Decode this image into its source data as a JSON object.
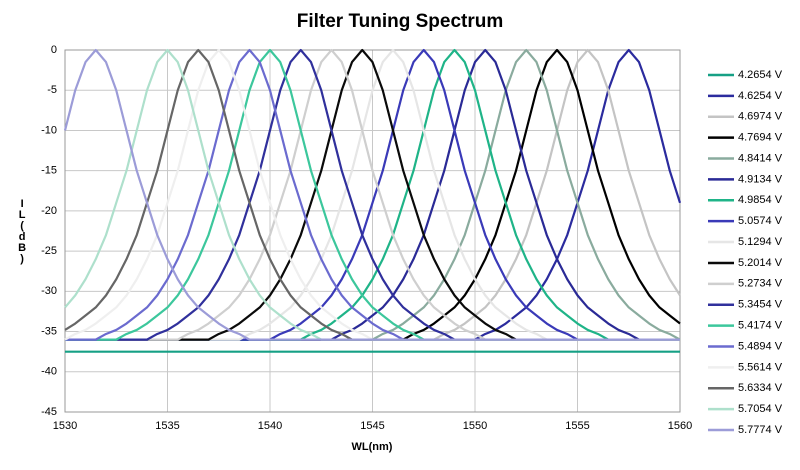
{
  "chart_data": {
    "type": "line",
    "title": "Filter Tuning Spectrum",
    "x_label": "WL(nm)",
    "y_label": "IL(dB)",
    "xlim": [
      1530,
      1560
    ],
    "ylim": [
      -45,
      0
    ],
    "xticks": [
      1530,
      1535,
      1540,
      1545,
      1550,
      1555,
      1560
    ],
    "yticks": [
      0,
      -5,
      -10,
      -15,
      -20,
      -25,
      -30,
      -35,
      -40,
      -45
    ],
    "grid": true,
    "legend": "right",
    "x": [
      1530,
      1530.5,
      1531,
      1531.5,
      1532,
      1532.5,
      1533,
      1533.5,
      1534,
      1534.5,
      1535,
      1535.5,
      1536,
      1536.5,
      1537,
      1537.5,
      1538,
      1538.5,
      1539,
      1539.5,
      1540,
      1540.5,
      1541,
      1541.5,
      1542,
      1542.5,
      1543,
      1543.5,
      1544,
      1544.5,
      1545,
      1545.5,
      1546,
      1546.5,
      1547,
      1547.5,
      1548,
      1548.5,
      1549,
      1549.5,
      1550,
      1550.5,
      1551,
      1551.5,
      1552,
      1552.5,
      1553,
      1553.5,
      1554,
      1554.5,
      1555,
      1555.5,
      1556,
      1556.5,
      1557,
      1557.5,
      1558,
      1558.5,
      1559,
      1559.5,
      1560
    ],
    "series": [
      {
        "name": "4.2654 V",
        "color": "#16a085",
        "values": [
          -37.5,
          -37.5,
          -37.5,
          -37.5,
          -37.5,
          -37.5,
          -37.5,
          -37.5,
          -37.5,
          -37.5,
          -37.5,
          -37.5,
          -37.5,
          -37.5,
          -37.5,
          -37.5,
          -37.5,
          -37.5,
          -37.5,
          -37.5,
          -37.5,
          -37.5,
          -37.5,
          -37.5,
          -37.5,
          -37.5,
          -37.5,
          -37.5,
          -37.5,
          -37.5,
          -37.5,
          -37.5,
          -37.5,
          -37.5,
          -37.5,
          -37.5,
          -37.5,
          -37.5,
          -37.5,
          -37.5,
          -37.5,
          -37.5,
          -37.5,
          -37.5,
          -37.5,
          -37.5,
          -37.5,
          -37.5,
          -37.5,
          -37.5,
          -37.5,
          -37.5,
          -37.5,
          -37.5,
          -37.5,
          -37.5,
          -37.5,
          -37.5,
          -37.5,
          -37.5,
          -37.5
        ]
      },
      {
        "name": "4.6254 V",
        "color": "#2b2b9e",
        "values": [
          -36,
          -36,
          -36,
          -36,
          -36,
          -36,
          -36,
          -36,
          -36,
          -36,
          -36,
          -36,
          -36,
          -36,
          -36,
          -36,
          -36,
          -36,
          -36,
          -36,
          -36,
          -36,
          -36,
          -36,
          -36,
          -36,
          -36,
          -36,
          -36,
          -36,
          -36,
          -36,
          -36,
          -36,
          -36,
          -36,
          -36,
          -36,
          -36,
          -36,
          -36,
          -35.3,
          -34.8,
          -34,
          -33,
          -32,
          -30.5,
          -28.5,
          -26,
          -23,
          -19,
          -15,
          -10,
          -5,
          -1.5,
          0,
          -1.5,
          -5,
          -10,
          -15,
          -19
        ]
      },
      {
        "name": "4.6974 V",
        "color": "#c4c4c4",
        "values": [
          -36,
          -36,
          -36,
          -36,
          -36,
          -36,
          -36,
          -36,
          -36,
          -36,
          -36,
          -36,
          -36,
          -36,
          -36,
          -36,
          -36,
          -36,
          -36,
          -36,
          -36,
          -36,
          -36,
          -36,
          -36,
          -36,
          -36,
          -36,
          -36,
          -36,
          -36,
          -36,
          -36,
          -36,
          -36,
          -36,
          -36,
          -35.3,
          -34.8,
          -34,
          -33,
          -32,
          -30.5,
          -28.5,
          -26,
          -23,
          -19,
          -15,
          -10,
          -5,
          -1.5,
          0,
          -1.5,
          -5,
          -10,
          -15,
          -19,
          -23,
          -26,
          -28.5,
          -30.5
        ]
      },
      {
        "name": "4.7694 V",
        "color": "#000000",
        "values": [
          -36,
          -36,
          -36,
          -36,
          -36,
          -36,
          -36,
          -36,
          -36,
          -36,
          -36,
          -36,
          -36,
          -36,
          -36,
          -36,
          -36,
          -36,
          -36,
          -36,
          -36,
          -36,
          -36,
          -36,
          -36,
          -36,
          -36,
          -36,
          -36,
          -36,
          -36,
          -36,
          -36,
          -36,
          -35.3,
          -34.8,
          -34,
          -33,
          -32,
          -30.5,
          -28.5,
          -26,
          -23,
          -19,
          -15,
          -10,
          -5,
          -1.5,
          0,
          -1.5,
          -5,
          -10,
          -15,
          -19,
          -23,
          -26,
          -28.5,
          -30.5,
          -32,
          -33,
          -34
        ]
      },
      {
        "name": "4.8414 V",
        "color": "#8aab9e",
        "values": [
          -36,
          -36,
          -36,
          -36,
          -36,
          -36,
          -36,
          -36,
          -36,
          -36,
          -36,
          -36,
          -36,
          -36,
          -36,
          -36,
          -36,
          -36,
          -36,
          -36,
          -36,
          -36,
          -36,
          -36,
          -36,
          -36,
          -36,
          -36,
          -36,
          -36,
          -36,
          -35.3,
          -34.8,
          -34,
          -33,
          -32,
          -30.5,
          -28.5,
          -26,
          -23,
          -19,
          -15,
          -10,
          -5,
          -1.5,
          0,
          -1.5,
          -5,
          -10,
          -15,
          -19,
          -23,
          -26,
          -28.5,
          -30.5,
          -32,
          -33,
          -34,
          -34.8,
          -35.3,
          -36
        ]
      },
      {
        "name": "4.9134 V",
        "color": "#2a2a96",
        "values": [
          -36,
          -36,
          -36,
          -36,
          -36,
          -36,
          -36,
          -36,
          -36,
          -36,
          -36,
          -36,
          -36,
          -36,
          -36,
          -36,
          -36,
          -36,
          -36,
          -36,
          -36,
          -36,
          -36,
          -36,
          -36,
          -36,
          -36,
          -35.3,
          -34.8,
          -34,
          -33,
          -32,
          -30.5,
          -28.5,
          -26,
          -23,
          -19,
          -15,
          -10,
          -5,
          -1.5,
          0,
          -1.5,
          -5,
          -10,
          -15,
          -19,
          -23,
          -26,
          -28.5,
          -30.5,
          -32,
          -33,
          -34,
          -34.8,
          -35.3,
          -36,
          -36,
          -36,
          -36,
          -36
        ]
      },
      {
        "name": "4.9854 V",
        "color": "#1fb488",
        "values": [
          -36,
          -36,
          -36,
          -36,
          -36,
          -36,
          -36,
          -36,
          -36,
          -36,
          -36,
          -36,
          -36,
          -36,
          -36,
          -36,
          -36,
          -36,
          -36,
          -36,
          -36,
          -36,
          -36,
          -36,
          -35.3,
          -34.8,
          -34,
          -33,
          -32,
          -30.5,
          -28.5,
          -26,
          -23,
          -19,
          -15,
          -10,
          -5,
          -1.5,
          0,
          -1.5,
          -5,
          -10,
          -15,
          -19,
          -23,
          -26,
          -28.5,
          -30.5,
          -32,
          -33,
          -34,
          -34.8,
          -35.3,
          -36,
          -36,
          -36,
          -36,
          -36,
          -36,
          -36,
          -36
        ]
      },
      {
        "name": "5.0574 V",
        "color": "#3a3ab8",
        "values": [
          -36,
          -36,
          -36,
          -36,
          -36,
          -36,
          -36,
          -36,
          -36,
          -36,
          -36,
          -36,
          -36,
          -36,
          -36,
          -36,
          -36,
          -36,
          -36,
          -36,
          -36,
          -35.3,
          -34.8,
          -34,
          -33,
          -32,
          -30.5,
          -28.5,
          -26,
          -23,
          -19,
          -15,
          -10,
          -5,
          -1.5,
          0,
          -1.5,
          -5,
          -10,
          -15,
          -19,
          -23,
          -26,
          -28.5,
          -30.5,
          -32,
          -33,
          -34,
          -34.8,
          -35.3,
          -36,
          -36,
          -36,
          -36,
          -36,
          -36,
          -36,
          -36,
          -36,
          -36,
          -36
        ]
      },
      {
        "name": "5.1294 V",
        "color": "#e6e6e6",
        "values": [
          -36,
          -36,
          -36,
          -36,
          -36,
          -36,
          -36,
          -36,
          -36,
          -36,
          -36,
          -36,
          -36,
          -36,
          -36,
          -36,
          -36,
          -36,
          -35.3,
          -34.8,
          -34,
          -33,
          -32,
          -30.5,
          -28.5,
          -26,
          -23,
          -19,
          -15,
          -10,
          -5,
          -1.5,
          0,
          -1.5,
          -5,
          -10,
          -15,
          -19,
          -23,
          -26,
          -28.5,
          -30.5,
          -32,
          -33,
          -34,
          -34.8,
          -35.3,
          -36,
          -36,
          -36,
          -36,
          -36,
          -36,
          -36,
          -36,
          -36,
          -36,
          -36,
          -36,
          -36,
          -36
        ]
      },
      {
        "name": "5.2014 V",
        "color": "#0a0a0a",
        "values": [
          -36,
          -36,
          -36,
          -36,
          -36,
          -36,
          -36,
          -36,
          -36,
          -36,
          -36,
          -36,
          -36,
          -36,
          -36,
          -35.3,
          -34.8,
          -34,
          -33,
          -32,
          -30.5,
          -28.5,
          -26,
          -23,
          -19,
          -15,
          -10,
          -5,
          -1.5,
          0,
          -1.5,
          -5,
          -10,
          -15,
          -19,
          -23,
          -26,
          -28.5,
          -30.5,
          -32,
          -33,
          -34,
          -34.8,
          -35.3,
          -36,
          -36,
          -36,
          -36,
          -36,
          -36,
          -36,
          -36,
          -36,
          -36,
          -36,
          -36,
          -36,
          -36,
          -36,
          -36,
          -36
        ]
      },
      {
        "name": "5.2734 V",
        "color": "#cfcfcf",
        "values": [
          -36,
          -36,
          -36,
          -36,
          -36,
          -36,
          -36,
          -36,
          -36,
          -36,
          -36,
          -36,
          -35.3,
          -34.8,
          -34,
          -33,
          -32,
          -30.5,
          -28.5,
          -26,
          -23,
          -19,
          -15,
          -10,
          -5,
          -1.5,
          0,
          -1.5,
          -5,
          -10,
          -15,
          -19,
          -23,
          -26,
          -28.5,
          -30.5,
          -32,
          -33,
          -34,
          -34.8,
          -35.3,
          -36,
          -36,
          -36,
          -36,
          -36,
          -36,
          -36,
          -36,
          -36,
          -36,
          -36,
          -36,
          -36,
          -36,
          -36,
          -36,
          -36,
          -36,
          -36,
          -36
        ]
      },
      {
        "name": "5.3454 V",
        "color": "#30309c",
        "values": [
          -36,
          -36,
          -36,
          -36,
          -36,
          -36,
          -36,
          -36,
          -36,
          -35.3,
          -34.8,
          -34,
          -33,
          -32,
          -30.5,
          -28.5,
          -26,
          -23,
          -19,
          -15,
          -10,
          -5,
          -1.5,
          0,
          -1.5,
          -5,
          -10,
          -15,
          -19,
          -23,
          -26,
          -28.5,
          -30.5,
          -32,
          -33,
          -34,
          -34.8,
          -35.3,
          -36,
          -36,
          -36,
          -36,
          -36,
          -36,
          -36,
          -36,
          -36,
          -36,
          -36,
          -36,
          -36,
          -36,
          -36,
          -36,
          -36,
          -36,
          -36,
          -36,
          -36,
          -36,
          -36
        ]
      },
      {
        "name": "5.4174 V",
        "color": "#3cc79c",
        "values": [
          -36,
          -36,
          -36,
          -36,
          -36,
          -36,
          -35.3,
          -34.8,
          -34,
          -33,
          -32,
          -30.5,
          -28.5,
          -26,
          -23,
          -19,
          -15,
          -10,
          -5,
          -1.5,
          0,
          -1.5,
          -5,
          -10,
          -15,
          -19,
          -23,
          -26,
          -28.5,
          -30.5,
          -32,
          -33,
          -34,
          -34.8,
          -35.3,
          -36,
          -36,
          -36,
          -36,
          -36,
          -36,
          -36,
          -36,
          -36,
          -36,
          -36,
          -36,
          -36,
          -36,
          -36,
          -36,
          -36,
          -36,
          -36,
          -36,
          -36,
          -36,
          -36,
          -36,
          -36,
          -36
        ]
      },
      {
        "name": "5.4894 V",
        "color": "#6b6bcf",
        "values": [
          -36,
          -36,
          -36,
          -36,
          -35.3,
          -34.8,
          -34,
          -33,
          -32,
          -30.5,
          -28.5,
          -26,
          -23,
          -19,
          -15,
          -10,
          -5,
          -1.5,
          0,
          -1.5,
          -5,
          -10,
          -15,
          -19,
          -23,
          -26,
          -28.5,
          -30.5,
          -32,
          -33,
          -34,
          -34.8,
          -35.3,
          -36,
          -36,
          -36,
          -36,
          -36,
          -36,
          -36,
          -36,
          -36,
          -36,
          -36,
          -36,
          -36,
          -36,
          -36,
          -36,
          -36,
          -36,
          -36,
          -36,
          -36,
          -36,
          -36,
          -36,
          -36,
          -36,
          -36,
          -36
        ]
      },
      {
        "name": "5.5614 V",
        "color": "#efefef",
        "values": [
          -36,
          -35.3,
          -34.8,
          -34,
          -33,
          -32,
          -30.5,
          -28.5,
          -26,
          -23,
          -19,
          -15,
          -10,
          -5,
          -1.5,
          0,
          -1.5,
          -5,
          -10,
          -15,
          -19,
          -23,
          -26,
          -28.5,
          -30.5,
          -32,
          -33,
          -34,
          -34.8,
          -35.3,
          -36,
          -36,
          -36,
          -36,
          -36,
          -36,
          -36,
          -36,
          -36,
          -36,
          -36,
          -36,
          -36,
          -36,
          -36,
          -36,
          -36,
          -36,
          -36,
          -36,
          -36,
          -36,
          -36,
          -36,
          -36,
          -36,
          -36,
          -36,
          -36,
          -36,
          -36
        ]
      },
      {
        "name": "5.6334 V",
        "color": "#666666",
        "values": [
          -34.8,
          -34,
          -33,
          -32,
          -30.5,
          -28.5,
          -26,
          -23,
          -19,
          -15,
          -10,
          -5,
          -1.5,
          0,
          -1.5,
          -5,
          -10,
          -15,
          -19,
          -23,
          -26,
          -28.5,
          -30.5,
          -32,
          -33,
          -34,
          -34.8,
          -35.3,
          -36,
          -36,
          -36,
          -36,
          -36,
          -36,
          -36,
          -36,
          -36,
          -36,
          -36,
          -36,
          -36,
          -36,
          -36,
          -36,
          -36,
          -36,
          -36,
          -36,
          -36,
          -36,
          -36,
          -36,
          -36,
          -36,
          -36,
          -36,
          -36,
          -36,
          -36,
          -36,
          -36
        ]
      },
      {
        "name": "5.7054 V",
        "color": "#aee0cc",
        "values": [
          -32,
          -30.5,
          -28.5,
          -26,
          -23,
          -19,
          -15,
          -10,
          -5,
          -1.5,
          0,
          -1.5,
          -5,
          -10,
          -15,
          -19,
          -23,
          -26,
          -28.5,
          -30.5,
          -32,
          -33,
          -34,
          -34.8,
          -35.3,
          -36,
          -36,
          -36,
          -36,
          -36,
          -36,
          -36,
          -36,
          -36,
          -36,
          -36,
          -36,
          -36,
          -36,
          -36,
          -36,
          -36,
          -36,
          -36,
          -36,
          -36,
          -36,
          -36,
          -36,
          -36,
          -36,
          -36,
          -36,
          -36,
          -36,
          -36,
          -36,
          -36,
          -36,
          -36,
          -36
        ]
      },
      {
        "name": "5.7774 V",
        "color": "#9c9cd8",
        "values": [
          -10,
          -5,
          -1.5,
          0,
          -1.5,
          -5,
          -10,
          -15,
          -19,
          -23,
          -26,
          -28.5,
          -30.5,
          -32,
          -33,
          -34,
          -34.8,
          -35.3,
          -36,
          -36,
          -36,
          -36,
          -36,
          -36,
          -36,
          -36,
          -36,
          -36,
          -36,
          -36,
          -36,
          -36,
          -36,
          -36,
          -36,
          -36,
          -36,
          -36,
          -36,
          -36,
          -36,
          -36,
          -36,
          -36,
          -36,
          -36,
          -36,
          -36,
          -36,
          -36,
          -36,
          -36,
          -36,
          -36,
          -36,
          -36,
          -36,
          -36,
          -36,
          -36,
          -36
        ]
      }
    ]
  }
}
